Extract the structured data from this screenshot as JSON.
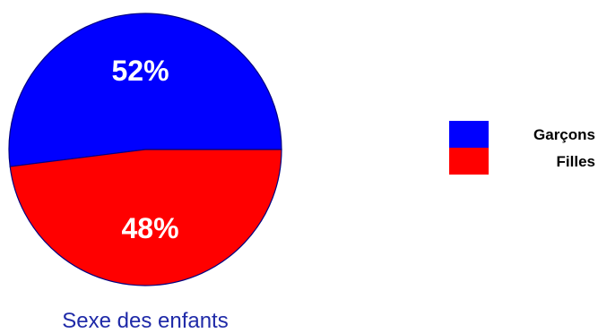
{
  "chart_data": {
    "type": "pie",
    "title": "Sexe des enfants",
    "slices": [
      {
        "label": "Garçons",
        "value": 52,
        "display": "52%",
        "color": "#0000ff"
      },
      {
        "label": "Filles",
        "value": 48,
        "display": "48%",
        "color": "#ff0000"
      }
    ],
    "legend_placement": "right",
    "slice_border_color": "#000080"
  }
}
